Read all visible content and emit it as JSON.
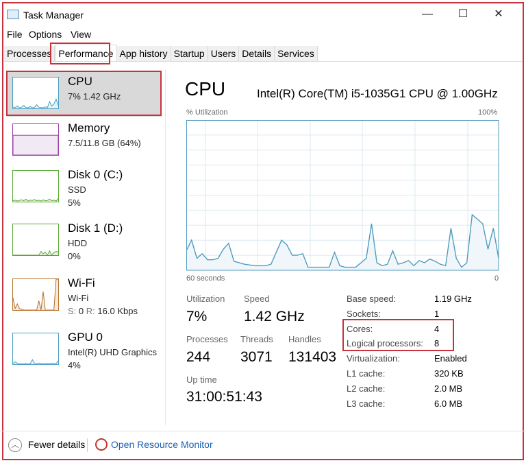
{
  "window": {
    "title": "Task Manager",
    "minimize": "—",
    "maximize": "☐",
    "close": "✕"
  },
  "menu": [
    "File",
    "Options",
    "View"
  ],
  "tabs": [
    {
      "label": "Processes"
    },
    {
      "label": "Performance",
      "active": true
    },
    {
      "label": "App history"
    },
    {
      "label": "Startup"
    },
    {
      "label": "Users"
    },
    {
      "label": "Details"
    },
    {
      "label": "Services"
    }
  ],
  "sidebar": [
    {
      "name": "CPU",
      "line1": "7% 1.42 GHz",
      "line2": "",
      "color": "#4a9ec4",
      "selected": true,
      "thumb": [
        5,
        3,
        8,
        2,
        4,
        10,
        3,
        2,
        6,
        2,
        3,
        12,
        4,
        3,
        2,
        5,
        3,
        22,
        8,
        14,
        30,
        10
      ]
    },
    {
      "name": "Memory",
      "line1": "7.5/11.8 GB (64%)",
      "line2": "",
      "color": "#9b3fa6",
      "fill_percent": 64
    },
    {
      "name": "Disk 0 (C:)",
      "line1": "SSD",
      "line2": "5%",
      "color": "#5aa832",
      "thumb": [
        3,
        5,
        2,
        4,
        6,
        3,
        8,
        2,
        5,
        4,
        7,
        3,
        5,
        2,
        6,
        3,
        4,
        8,
        3,
        5,
        2,
        10
      ]
    },
    {
      "name": "Disk 1 (D:)",
      "line1": "HDD",
      "line2": "0%",
      "color": "#5aa832",
      "thumb": [
        0,
        0,
        0,
        0,
        0,
        0,
        0,
        0,
        0,
        0,
        0,
        0,
        0,
        12,
        4,
        10,
        0,
        14,
        0,
        8,
        12,
        10
      ]
    },
    {
      "name": "Wi-Fi",
      "line1": "Wi-Fi",
      "line2_s": "S:",
      "line2_sv": "0",
      "line2_r": "R:",
      "line2_rv": "16.0 Kbps",
      "color": "#b8702a",
      "thumb": [
        40,
        5,
        20,
        5,
        2,
        0,
        0,
        0,
        0,
        0,
        0,
        0,
        30,
        0,
        60,
        0,
        0,
        0,
        0,
        0,
        100,
        100
      ]
    },
    {
      "name": "GPU 0",
      "line1": "Intel(R) UHD Graphics",
      "line2": "4%",
      "color": "#4a9ec4",
      "thumb": [
        2,
        8,
        3,
        2,
        1,
        1,
        2,
        1,
        1,
        15,
        3,
        2,
        4,
        3,
        2,
        1,
        3,
        2,
        4,
        3,
        2,
        12
      ]
    }
  ],
  "main": {
    "title": "CPU",
    "model": "Intel(R) Core(TM) i5-1035G1 CPU @ 1.00GHz",
    "y_label": "% Utilization",
    "y_max_label": "100%",
    "x_left_label": "60 seconds",
    "x_right_label": "0",
    "stats": {
      "utilization_label": "Utilization",
      "utilization": "7%",
      "speed_label": "Speed",
      "speed": "1.42 GHz",
      "processes_label": "Processes",
      "processes": "244",
      "threads_label": "Threads",
      "threads": "3071",
      "handles_label": "Handles",
      "handles": "131403",
      "uptime_label": "Up time",
      "uptime": "31:00:51:43"
    },
    "specs": [
      {
        "k": "Base speed:",
        "v": "1.19 GHz"
      },
      {
        "k": "Sockets:",
        "v": "1"
      },
      {
        "k": "Cores:",
        "v": "4"
      },
      {
        "k": "Logical processors:",
        "v": "8"
      },
      {
        "k": "Virtualization:",
        "v": "Enabled"
      },
      {
        "k": "L1 cache:",
        "v": "320 KB"
      },
      {
        "k": "L2 cache:",
        "v": "2.0 MB"
      },
      {
        "k": "L3 cache:",
        "v": "6.0 MB"
      }
    ]
  },
  "footer": {
    "fewer": "Fewer details",
    "monitor": "Open Resource Monitor"
  },
  "chart_data": {
    "type": "area",
    "xlabel": "",
    "ylabel": "% Utilization",
    "ylim": [
      0,
      100
    ],
    "grid": true,
    "color": "#4f9cbf",
    "values": [
      13,
      20,
      8,
      11,
      7,
      7,
      8,
      14,
      18,
      6,
      5,
      4,
      3.5,
      3,
      3,
      3,
      4,
      12,
      20,
      17,
      10,
      10,
      11,
      2,
      2,
      2,
      2,
      2,
      12,
      3,
      2,
      2,
      2,
      5,
      8,
      31,
      5,
      3,
      4,
      13,
      4,
      5,
      6.5,
      3,
      6.5,
      5,
      7.5,
      6,
      4,
      3,
      28,
      8,
      2,
      5,
      37,
      34,
      31,
      14,
      28,
      8
    ]
  }
}
